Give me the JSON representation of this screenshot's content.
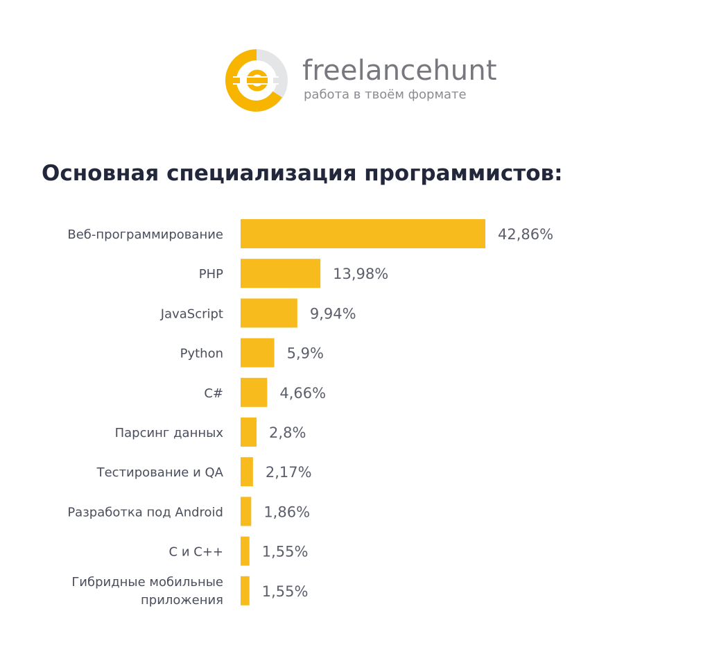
{
  "brand": {
    "name": "freelancehunt",
    "tagline": "работа в твоём формате",
    "accent_color": "#f7b500",
    "text_color": "#77787d",
    "logo_icon": "freelancehunt-logo-icon"
  },
  "chart_data": {
    "type": "bar",
    "orientation": "horizontal",
    "title": "Основная специализация программистов:",
    "xlabel": "",
    "ylabel": "",
    "grid": false,
    "legend": "none",
    "bar_color": "#f7bb1e",
    "xlim": [
      0,
      42.86
    ],
    "categories": [
      "Веб-программирование",
      "PHP",
      "JavaScript",
      "Python",
      "C#",
      "Парсинг данных",
      "Тестирование и QA",
      "Разработка под Android",
      "С и С++",
      "Гибридные мобильные приложения"
    ],
    "values": [
      42.86,
      13.98,
      9.94,
      5.9,
      4.66,
      2.8,
      2.17,
      1.86,
      1.55,
      1.55
    ],
    "value_labels": [
      "42,86%",
      "13,98%",
      "9,94%",
      "5,9%",
      "4,66%",
      "2,8%",
      "2,17%",
      "1,86%",
      "1,55%",
      "1,55%"
    ]
  }
}
